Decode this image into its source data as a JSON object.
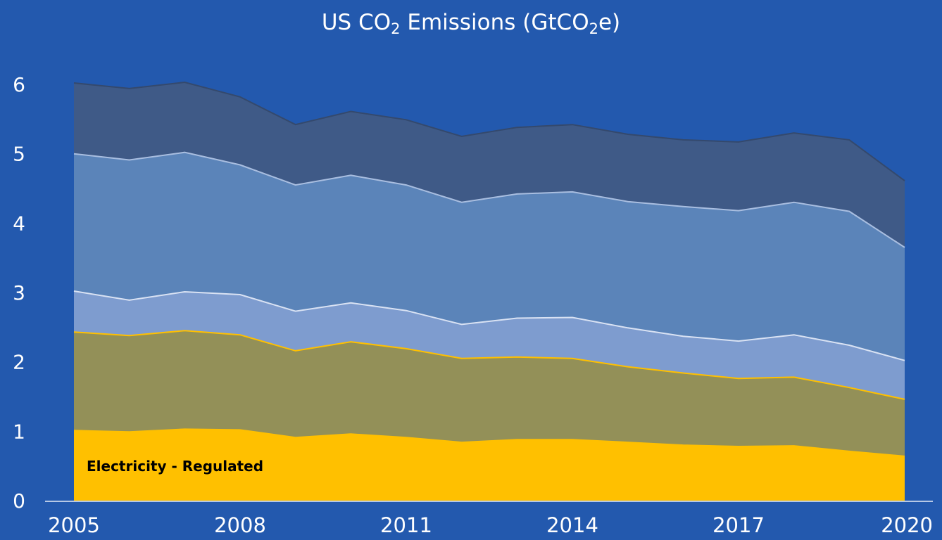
{
  "chart_data": {
    "type": "area",
    "stacked": true,
    "title": {
      "prefix": "US CO",
      "sub1": "2",
      "middle": " Emissions (GtCO",
      "sub2": "2",
      "suffix": "e)"
    },
    "xlabel": "",
    "ylabel": "",
    "x": [
      2005,
      2006,
      2007,
      2008,
      2009,
      2010,
      2011,
      2012,
      2013,
      2014,
      2015,
      2016,
      2017,
      2018,
      2019,
      2020
    ],
    "x_tick_labels": [
      "2005",
      "2008",
      "2011",
      "2014",
      "2017",
      "2020"
    ],
    "ylim": [
      0,
      6
    ],
    "y_tick_labels": [
      "0",
      "1",
      "2",
      "3",
      "4",
      "5",
      "6"
    ],
    "grid": false,
    "legend": "none",
    "annotations": [
      {
        "text": "Electricity - Regulated",
        "series_index": 0
      }
    ],
    "series": [
      {
        "name": "Electricity - Regulated",
        "fill": "#ffc000",
        "line": "#ffc000",
        "values": [
          1.01,
          0.99,
          1.03,
          1.02,
          0.91,
          0.96,
          0.91,
          0.84,
          0.88,
          0.88,
          0.84,
          0.8,
          0.78,
          0.79,
          0.71,
          0.64
        ]
      },
      {
        "fill": "#939058",
        "line": "#ffc000",
        "values": [
          1.42,
          1.39,
          1.42,
          1.37,
          1.25,
          1.33,
          1.28,
          1.21,
          1.19,
          1.17,
          1.09,
          1.04,
          0.98,
          0.99,
          0.92,
          0.82
        ]
      },
      {
        "fill": "#7e9ccf",
        "line": "#d9e2f3",
        "values": [
          0.59,
          0.51,
          0.56,
          0.58,
          0.57,
          0.56,
          0.55,
          0.49,
          0.56,
          0.59,
          0.56,
          0.53,
          0.54,
          0.61,
          0.61,
          0.56
        ]
      },
      {
        "fill": "#5b84b9",
        "line": "#a9bee0",
        "values": [
          1.98,
          2.02,
          2.01,
          1.87,
          1.82,
          1.84,
          1.81,
          1.76,
          1.79,
          1.81,
          1.82,
          1.87,
          1.88,
          1.91,
          1.93,
          1.63
        ]
      },
      {
        "fill": "#3f5a87",
        "line": "#34496d",
        "values": [
          1.02,
          1.03,
          1.01,
          0.98,
          0.87,
          0.92,
          0.94,
          0.95,
          0.96,
          0.97,
          0.97,
          0.96,
          0.99,
          1.0,
          1.03,
          0.96
        ]
      }
    ]
  }
}
